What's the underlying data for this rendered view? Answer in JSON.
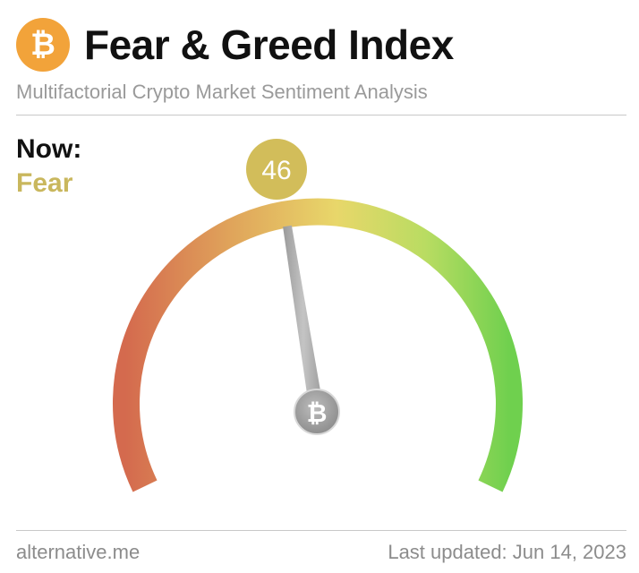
{
  "header": {
    "logo_symbol": "₿",
    "logo_icon": "bitcoin-icon",
    "title": "Fear & Greed Index",
    "subtitle": "Multifactorial Crypto Market Sentiment Analysis"
  },
  "now": {
    "label": "Now:",
    "value_label": "Fear",
    "value_color": "#c9b75d"
  },
  "gauge": {
    "value": 46,
    "min": 0,
    "max": 100,
    "badge_color": "#d2bd5a",
    "hub_symbol": "₿",
    "colors": {
      "low": "#d46a4e",
      "mid": "#e8d76a",
      "high": "#6fd04e"
    }
  },
  "footer": {
    "source": "alternative.me",
    "updated": "Last updated: Jun 14, 2023"
  }
}
